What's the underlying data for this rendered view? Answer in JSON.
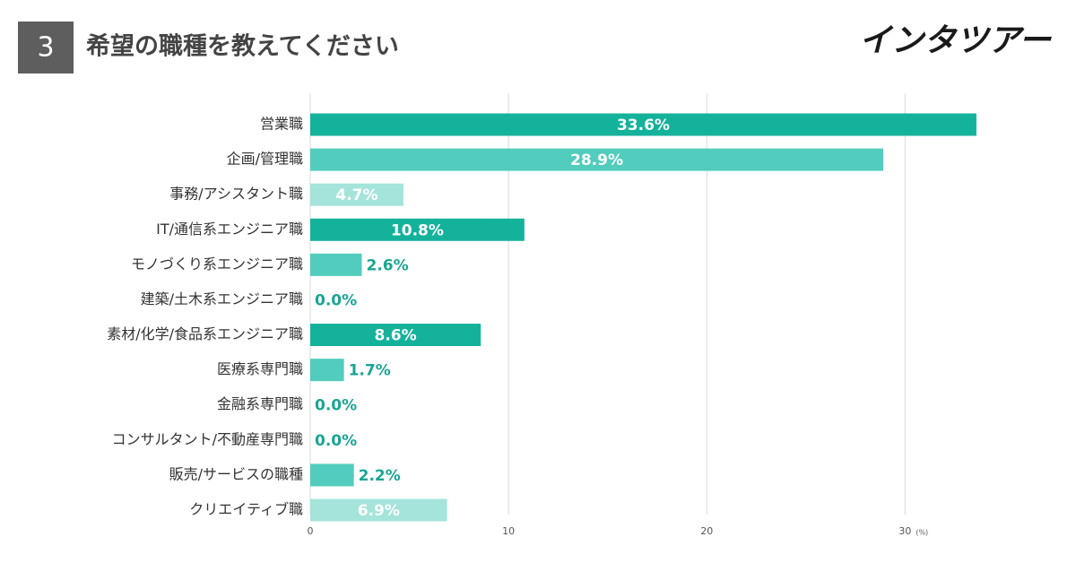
{
  "header": {
    "number": "3",
    "logo": "インタツアー"
  },
  "chart_data": {
    "type": "hbar",
    "title": "希望の職種を教えてください",
    "categories": [
      "営業職",
      "企画/管理職",
      "事務/アシスタント職",
      "IT/通信系エンジニア職",
      "モノづくり系エンジニア職",
      "建築/土木系エンジニア職",
      "素材/化学/食品系エンジニア職",
      "医療系専門職",
      "金融系専門職",
      "コンサルタント/不動産専門職",
      "販売/サービスの職種",
      "クリエイティブ職"
    ],
    "values": [
      33.6,
      28.9,
      4.7,
      10.8,
      2.6,
      0.0,
      8.6,
      1.7,
      0.0,
      0.0,
      2.2,
      6.9
    ],
    "value_labels": [
      "33.6%",
      "28.9%",
      "4.7%",
      "10.8%",
      "2.6%",
      "0.0%",
      "8.6%",
      "1.7%",
      "0.0%",
      "0.0%",
      "2.2%",
      "6.9%"
    ],
    "colors": [
      "#14b29b",
      "#52ccbc",
      "#a5e4da",
      "#14b29b",
      "#52ccbc",
      "#a5e4da",
      "#14b29b",
      "#52ccbc",
      "#a5e4da",
      "#14b29b",
      "#52ccbc",
      "#a5e4da"
    ],
    "xlim": [
      0,
      36
    ],
    "xticks": [
      0,
      10,
      20,
      30
    ],
    "x_label": "(%)",
    "grid": true
  }
}
